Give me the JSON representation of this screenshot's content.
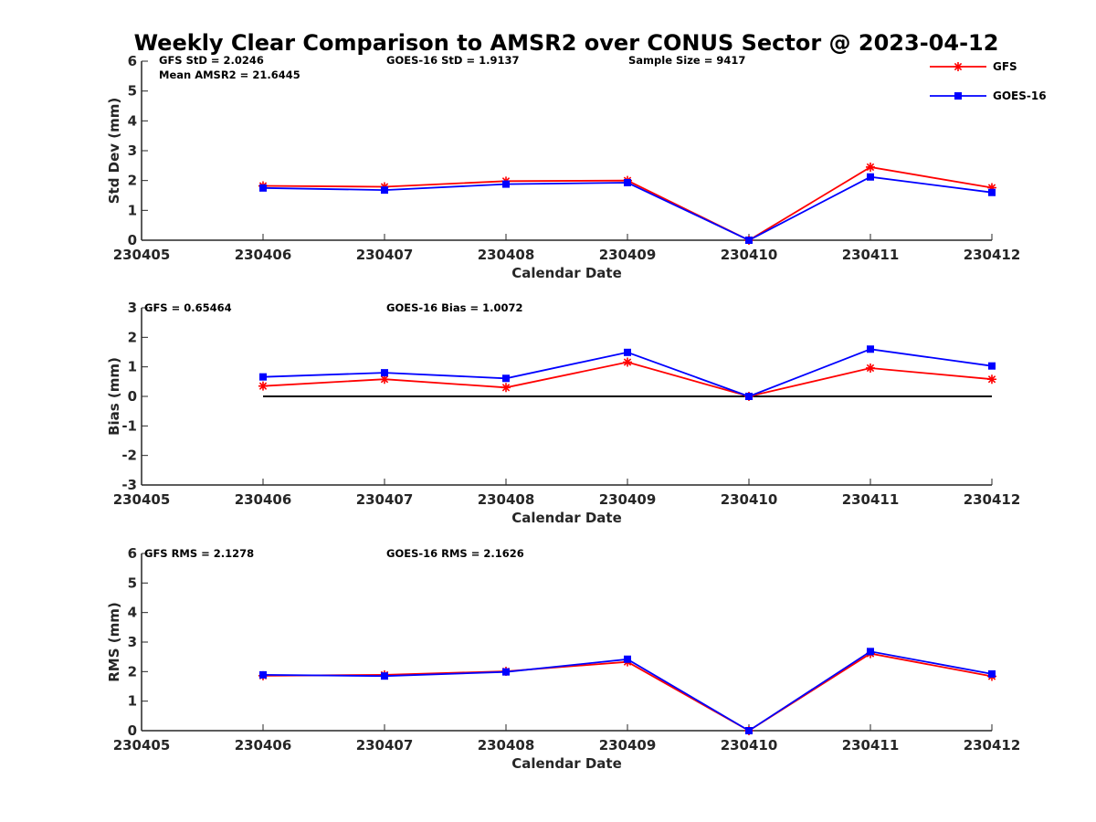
{
  "chart_data": {
    "title": "Weekly Clear Comparison to AMSR2 over CONUS Sector @ 2023-04-12",
    "legend": {
      "placement": "top-right",
      "entries": [
        {
          "name": "GFS",
          "color": "#ff0000",
          "marker": "asterisk"
        },
        {
          "name": "GOES-16",
          "color": "#0000ff",
          "marker": "square"
        }
      ]
    },
    "panels": [
      {
        "type": "line",
        "xlabel": "Calendar Date",
        "ylabel": "Std Dev (mm)",
        "xlim": [
          230405,
          230412
        ],
        "ylim": [
          0,
          6
        ],
        "yticks": [
          0,
          1,
          2,
          3,
          4,
          5,
          6
        ],
        "xtick_labels": [
          "230405",
          "230406",
          "230407",
          "230408",
          "230409",
          "230410",
          "230411",
          "230412"
        ],
        "annotations": [
          "GFS StD = 2.0246",
          "GOES-16 StD = 1.9137",
          "Sample Size = 9417",
          "Mean AMSR2 = 21.6445"
        ],
        "zero_line": false,
        "x": [
          230406,
          230407,
          230408,
          230409,
          230410,
          230411,
          230412
        ],
        "series": [
          {
            "name": "GFS",
            "color": "#ff0000",
            "marker": "asterisk",
            "values": [
              1.82,
              1.79,
              1.98,
              2.0,
              0.0,
              2.45,
              1.76
            ]
          },
          {
            "name": "GOES-16",
            "color": "#0000ff",
            "marker": "square",
            "values": [
              1.75,
              1.68,
              1.88,
              1.93,
              0.0,
              2.12,
              1.6
            ]
          }
        ]
      },
      {
        "type": "line",
        "xlabel": "Calendar Date",
        "ylabel": "Bias (mm)",
        "xlim": [
          230405,
          230412
        ],
        "ylim": [
          -3,
          3
        ],
        "yticks": [
          -3,
          -2,
          -1,
          0,
          1,
          2,
          3
        ],
        "xtick_labels": [
          "230405",
          "230406",
          "230407",
          "230408",
          "230409",
          "230410",
          "230411",
          "230412"
        ],
        "annotations": [
          "GFS = 0.65464",
          "GOES-16 Bias  = 1.0072"
        ],
        "zero_line": true,
        "x": [
          230406,
          230407,
          230408,
          230409,
          230410,
          230411,
          230412
        ],
        "series": [
          {
            "name": "GFS",
            "color": "#ff0000",
            "marker": "asterisk",
            "values": [
              0.35,
              0.58,
              0.3,
              1.16,
              0.0,
              0.96,
              0.58
            ]
          },
          {
            "name": "GOES-16",
            "color": "#0000ff",
            "marker": "square",
            "values": [
              0.66,
              0.8,
              0.61,
              1.49,
              0.0,
              1.6,
              1.03
            ]
          }
        ]
      },
      {
        "type": "line",
        "xlabel": "Calendar Date",
        "ylabel": "RMS (mm)",
        "xlim": [
          230405,
          230412
        ],
        "ylim": [
          0,
          6
        ],
        "yticks": [
          0,
          1,
          2,
          3,
          4,
          5,
          6
        ],
        "xtick_labels": [
          "230405",
          "230406",
          "230407",
          "230408",
          "230409",
          "230410",
          "230411",
          "230412"
        ],
        "annotations": [
          "GFS RMS = 2.1278",
          "GOES-16 RMS = 2.1626"
        ],
        "zero_line": false,
        "x": [
          230406,
          230407,
          230408,
          230409,
          230410,
          230411,
          230412
        ],
        "series": [
          {
            "name": "GFS",
            "color": "#ff0000",
            "marker": "asterisk",
            "values": [
              1.86,
              1.89,
              2.01,
              2.33,
              0.0,
              2.61,
              1.84
            ]
          },
          {
            "name": "GOES-16",
            "color": "#0000ff",
            "marker": "square",
            "values": [
              1.89,
              1.85,
              1.99,
              2.42,
              0.0,
              2.68,
              1.92
            ]
          }
        ]
      }
    ]
  }
}
